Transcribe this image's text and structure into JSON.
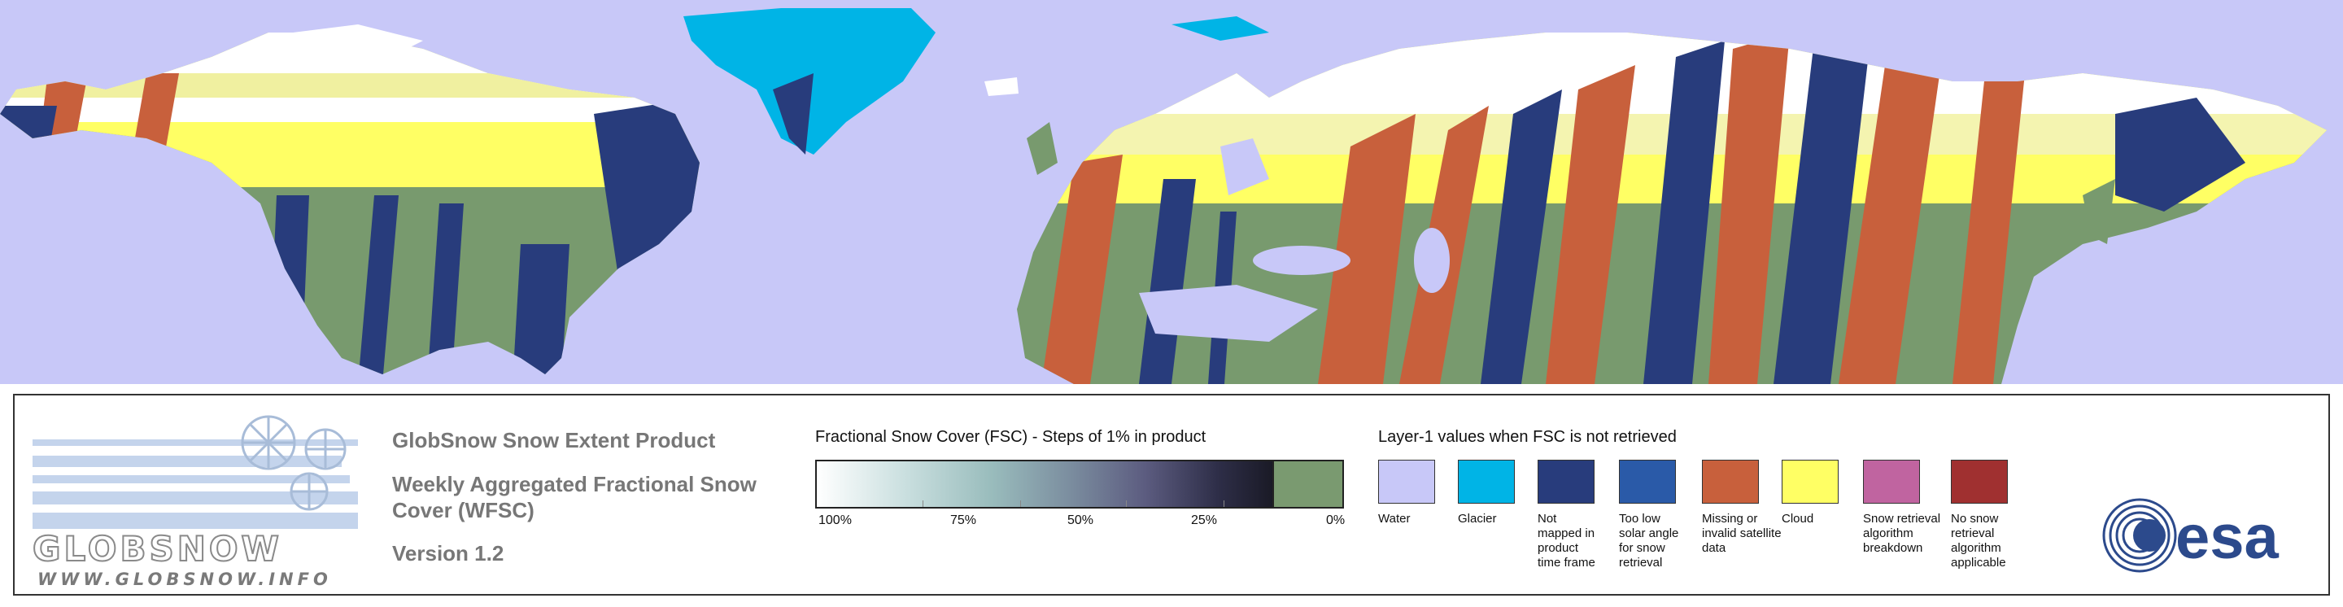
{
  "map": {
    "colors": {
      "water": "#c8c8f8",
      "glacier": "#00b4e6",
      "not_mapped": "#283c7c",
      "low_solar": "#2a5aa8",
      "missing": "#c8603c",
      "cloud": "#ffff64",
      "breakdown": "#c064a0",
      "no_retrieval": "#a03030",
      "snowfree": "#789a6e",
      "snow": "#ffffff"
    }
  },
  "logo": {
    "wordmark": "GLOBSNOW",
    "url": "WWW.GLOBSNOW.INFO"
  },
  "title": {
    "line1": "GlobSnow Snow Extent Product",
    "line2": "Weekly Aggregated Fractional Snow Cover (WFSC)",
    "line3": "Version 1.2"
  },
  "fsc_legend": {
    "caption": "Fractional Snow Cover (FSC) - Steps of 1% in product",
    "ticks": [
      "100%",
      "75%",
      "50%",
      "25%",
      "0%"
    ]
  },
  "layer1_legend": {
    "caption": "Layer-1 values when FSC is not retrieved",
    "items": [
      {
        "label": "Water",
        "color": "#c8c8f8"
      },
      {
        "label": "Glacier",
        "color": "#00b4e6"
      },
      {
        "label": "Not mapped in product time frame",
        "color": "#283c7c"
      },
      {
        "label": "Too low solar angle for snow retrieval",
        "color": "#2a5aa8"
      },
      {
        "label": "Missing or invalid satellite data",
        "color": "#c8603c"
      },
      {
        "label": "Cloud",
        "color": "#ffff64"
      },
      {
        "label": "Snow retrieval algorithm breakdown",
        "color": "#c064a0"
      },
      {
        "label": "No snow retrieval algorithm applicable",
        "color": "#a03030"
      }
    ]
  },
  "esa": {
    "wordmark": "esa"
  }
}
